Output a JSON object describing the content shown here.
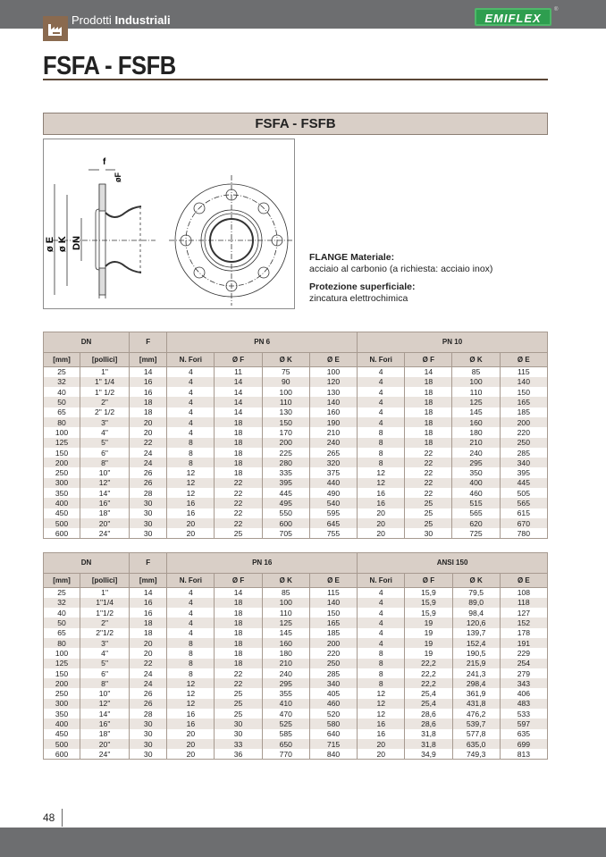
{
  "header": {
    "category_light": "Prodotti",
    "category_bold": "Industriali",
    "brand": "EMIFLEX",
    "brand_mark": "®"
  },
  "title": "FSFA - FSFB",
  "banner": "FSFA - FSFB",
  "drawing_labels": {
    "f": "f",
    "oF": "øF",
    "oE": "ø E",
    "oK": "ø K",
    "dn": "DN"
  },
  "spec": {
    "material_title": "FLANGE Materiale:",
    "material": "acciaio al carbonio (a richiesta: acciaio inox)",
    "surface_title": "Protezione superficiale:",
    "surface": "zincatura elettrochimica"
  },
  "tables": [
    {
      "groups": [
        "DN",
        "F",
        "PN 6",
        "PN 10"
      ],
      "columns": [
        "[mm]",
        "[pollici]",
        "[mm]",
        "N. Fori",
        "Ø F",
        "Ø K",
        "Ø E",
        "N. Fori",
        "Ø F",
        "Ø K",
        "Ø E"
      ],
      "rows": [
        [
          "25",
          "1\"",
          "14",
          "4",
          "11",
          "75",
          "100",
          "4",
          "14",
          "85",
          "115"
        ],
        [
          "32",
          "1\" 1/4",
          "16",
          "4",
          "14",
          "90",
          "120",
          "4",
          "18",
          "100",
          "140"
        ],
        [
          "40",
          "1\" 1/2",
          "16",
          "4",
          "14",
          "100",
          "130",
          "4",
          "18",
          "110",
          "150"
        ],
        [
          "50",
          "2\"",
          "18",
          "4",
          "14",
          "110",
          "140",
          "4",
          "18",
          "125",
          "165"
        ],
        [
          "65",
          "2\" 1/2",
          "18",
          "4",
          "14",
          "130",
          "160",
          "4",
          "18",
          "145",
          "185"
        ],
        [
          "80",
          "3\"",
          "20",
          "4",
          "18",
          "150",
          "190",
          "4",
          "18",
          "160",
          "200"
        ],
        [
          "100",
          "4\"",
          "20",
          "4",
          "18",
          "170",
          "210",
          "8",
          "18",
          "180",
          "220"
        ],
        [
          "125",
          "5\"",
          "22",
          "8",
          "18",
          "200",
          "240",
          "8",
          "18",
          "210",
          "250"
        ],
        [
          "150",
          "6\"",
          "24",
          "8",
          "18",
          "225",
          "265",
          "8",
          "22",
          "240",
          "285"
        ],
        [
          "200",
          "8\"",
          "24",
          "8",
          "18",
          "280",
          "320",
          "8",
          "22",
          "295",
          "340"
        ],
        [
          "250",
          "10\"",
          "26",
          "12",
          "18",
          "335",
          "375",
          "12",
          "22",
          "350",
          "395"
        ],
        [
          "300",
          "12\"",
          "26",
          "12",
          "22",
          "395",
          "440",
          "12",
          "22",
          "400",
          "445"
        ],
        [
          "350",
          "14\"",
          "28",
          "12",
          "22",
          "445",
          "490",
          "16",
          "22",
          "460",
          "505"
        ],
        [
          "400",
          "16\"",
          "30",
          "16",
          "22",
          "495",
          "540",
          "16",
          "25",
          "515",
          "565"
        ],
        [
          "450",
          "18\"",
          "30",
          "16",
          "22",
          "550",
          "595",
          "20",
          "25",
          "565",
          "615"
        ],
        [
          "500",
          "20\"",
          "30",
          "20",
          "22",
          "600",
          "645",
          "20",
          "25",
          "620",
          "670"
        ],
        [
          "600",
          "24\"",
          "30",
          "20",
          "25",
          "705",
          "755",
          "20",
          "30",
          "725",
          "780"
        ]
      ]
    },
    {
      "groups": [
        "DN",
        "F",
        "PN 16",
        "ANSI 150"
      ],
      "columns": [
        "[mm]",
        "[pollici]",
        "[mm]",
        "N. Fori",
        "Ø F",
        "Ø K",
        "Ø E",
        "N. Fori",
        "Ø F",
        "Ø K",
        "Ø E"
      ],
      "rows": [
        [
          "25",
          "1\"",
          "14",
          "4",
          "14",
          "85",
          "115",
          "4",
          "15,9",
          "79,5",
          "108"
        ],
        [
          "32",
          "1\"1/4",
          "16",
          "4",
          "18",
          "100",
          "140",
          "4",
          "15,9",
          "89,0",
          "118"
        ],
        [
          "40",
          "1\"1/2",
          "16",
          "4",
          "18",
          "110",
          "150",
          "4",
          "15,9",
          "98,4",
          "127"
        ],
        [
          "50",
          "2\"",
          "18",
          "4",
          "18",
          "125",
          "165",
          "4",
          "19",
          "120,6",
          "152"
        ],
        [
          "65",
          "2\"1/2",
          "18",
          "4",
          "18",
          "145",
          "185",
          "4",
          "19",
          "139,7",
          "178"
        ],
        [
          "80",
          "3\"",
          "20",
          "8",
          "18",
          "160",
          "200",
          "4",
          "19",
          "152,4",
          "191"
        ],
        [
          "100",
          "4\"",
          "20",
          "8",
          "18",
          "180",
          "220",
          "8",
          "19",
          "190,5",
          "229"
        ],
        [
          "125",
          "5\"",
          "22",
          "8",
          "18",
          "210",
          "250",
          "8",
          "22,2",
          "215,9",
          "254"
        ],
        [
          "150",
          "6\"",
          "24",
          "8",
          "22",
          "240",
          "285",
          "8",
          "22,2",
          "241,3",
          "279"
        ],
        [
          "200",
          "8\"",
          "24",
          "12",
          "22",
          "295",
          "340",
          "8",
          "22,2",
          "298,4",
          "343"
        ],
        [
          "250",
          "10\"",
          "26",
          "12",
          "25",
          "355",
          "405",
          "12",
          "25,4",
          "361,9",
          "406"
        ],
        [
          "300",
          "12\"",
          "26",
          "12",
          "25",
          "410",
          "460",
          "12",
          "25,4",
          "431,8",
          "483"
        ],
        [
          "350",
          "14\"",
          "28",
          "16",
          "25",
          "470",
          "520",
          "12",
          "28,6",
          "476,2",
          "533"
        ],
        [
          "400",
          "16\"",
          "30",
          "16",
          "30",
          "525",
          "580",
          "16",
          "28,6",
          "539,7",
          "597"
        ],
        [
          "450",
          "18\"",
          "30",
          "20",
          "30",
          "585",
          "640",
          "16",
          "31,8",
          "577,8",
          "635"
        ],
        [
          "500",
          "20\"",
          "30",
          "20",
          "33",
          "650",
          "715",
          "20",
          "31,8",
          "635,0",
          "699"
        ],
        [
          "600",
          "24\"",
          "30",
          "20",
          "36",
          "770",
          "840",
          "20",
          "34,9",
          "749,3",
          "813"
        ]
      ]
    }
  ],
  "footer": {
    "page_number": "48"
  },
  "colors": {
    "bar": "#6d6e70",
    "accent_brown": "#8a6a4f",
    "table_header": "#d9cfc7",
    "brand_green": "#2e9e4f"
  }
}
